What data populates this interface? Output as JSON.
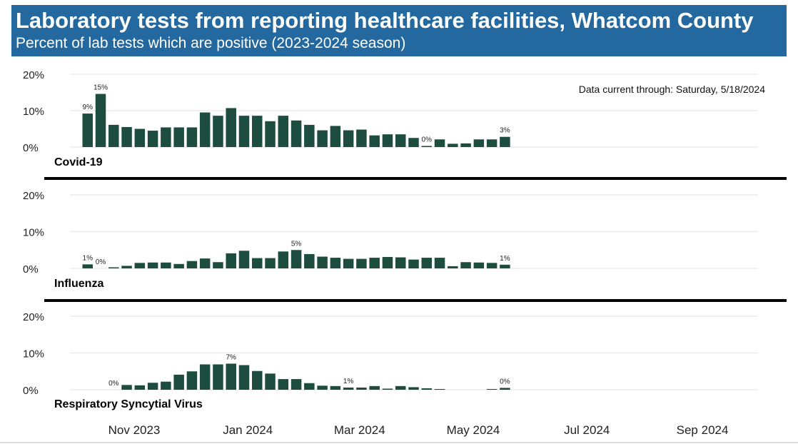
{
  "header": {
    "title": "Laboratory tests from reporting healthcare facilities, Whatcom County",
    "subtitle": "Percent of lab tests which are positive (2023-2024 season)"
  },
  "note": "Data current through: Saturday, 5/18/2024",
  "colors": {
    "header_bg": "#2369a0",
    "bar": "#1c4d3e"
  },
  "chart_data": [
    {
      "type": "bar",
      "title": "Covid-19",
      "ylim": [
        0,
        20
      ],
      "yticks": [
        "0%",
        "10%",
        "20%"
      ],
      "grid": true,
      "x_start_week_ending": "2023-10-07",
      "x_interval": "weekly",
      "values": [
        9.2,
        14.6,
        6.1,
        5.5,
        5.0,
        4.5,
        5.4,
        5.4,
        5.4,
        9.5,
        8.6,
        10.7,
        8.6,
        8.6,
        7.1,
        8.6,
        7.3,
        6.1,
        4.6,
        5.8,
        4.6,
        4.8,
        3.2,
        3.5,
        3.5,
        2.5,
        0.3,
        2.1,
        0.9,
        1.0,
        2.1,
        2.1,
        2.8
      ],
      "data_labels": [
        {
          "index": 0,
          "text": "9%"
        },
        {
          "index": 1,
          "text": "15%"
        },
        {
          "index": 26,
          "text": "0%"
        },
        {
          "index": 32,
          "text": "3%"
        }
      ]
    },
    {
      "type": "bar",
      "title": "Influenza",
      "ylim": [
        0,
        20
      ],
      "yticks": [
        "0%",
        "10%",
        "20%"
      ],
      "grid": true,
      "x_start_week_ending": "2023-10-07",
      "x_interval": "weekly",
      "values": [
        1.1,
        0.0,
        0.3,
        0.7,
        1.5,
        1.6,
        1.6,
        1.2,
        2.0,
        2.7,
        1.7,
        4.1,
        4.8,
        2.8,
        2.8,
        4.6,
        5.0,
        3.9,
        3.2,
        2.9,
        2.6,
        2.6,
        2.9,
        3.1,
        3.0,
        2.4,
        2.9,
        2.9,
        0.6,
        1.7,
        1.6,
        1.5,
        1.0
      ],
      "data_labels": [
        {
          "index": 0,
          "text": "1%"
        },
        {
          "index": 1,
          "text": "0%"
        },
        {
          "index": 16,
          "text": "5%"
        },
        {
          "index": 32,
          "text": "1%"
        }
      ]
    },
    {
      "type": "bar",
      "title": "Respiratory Syncytial Virus",
      "ylim": [
        0,
        20
      ],
      "yticks": [
        "0%",
        "10%",
        "20%"
      ],
      "grid": true,
      "x_start_week_ending": "2023-10-07",
      "x_interval": "weekly",
      "values": [
        null,
        null,
        0.0,
        1.3,
        1.2,
        1.9,
        2.2,
        4.1,
        5.0,
        6.9,
        6.9,
        7.1,
        6.7,
        5.1,
        4.4,
        2.9,
        2.9,
        1.8,
        1.1,
        1.0,
        0.6,
        0.6,
        1.0,
        0.3,
        1.0,
        0.7,
        0.4,
        0.2,
        null,
        null,
        null,
        0.2,
        0.5
      ],
      "data_labels": [
        {
          "index": 2,
          "text": "0%"
        },
        {
          "index": 11,
          "text": "7%"
        },
        {
          "index": 20,
          "text": "1%"
        },
        {
          "index": 32,
          "text": "0%"
        }
      ]
    }
  ],
  "x_axis": {
    "ticks": [
      {
        "date": "2023-11-01",
        "label": "Nov 2023"
      },
      {
        "date": "2024-01-01",
        "label": "Jan 2024"
      },
      {
        "date": "2024-03-01",
        "label": "Mar 2024"
      },
      {
        "date": "2024-05-01",
        "label": "May 2024"
      },
      {
        "date": "2024-07-01",
        "label": "Jul 2024"
      },
      {
        "date": "2024-09-01",
        "label": "Sep 2024"
      }
    ]
  }
}
